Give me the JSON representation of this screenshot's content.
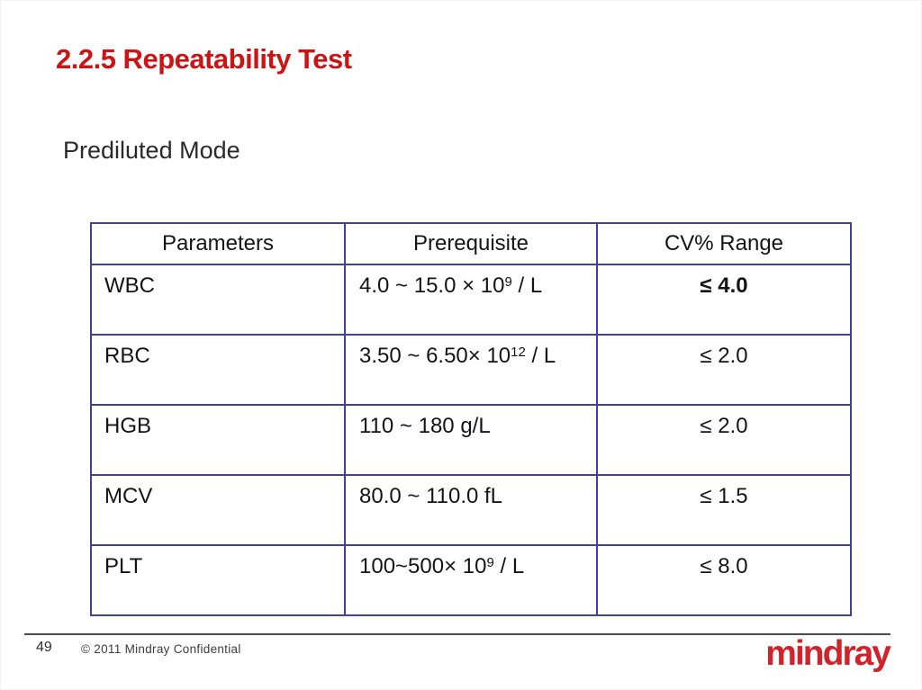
{
  "slide": {
    "title": "2.2.5 Repeatability Test",
    "subtitle": "Prediluted Mode"
  },
  "table": {
    "headers": [
      "Parameters",
      "Prerequisite",
      "CV% Range"
    ],
    "rows": [
      {
        "parameter": "WBC",
        "prereq": "4.0 ~ 15.0 × 10",
        "sup": "9",
        "tail": " / L",
        "cv": "≤ 4.0",
        "cv_bold": true
      },
      {
        "parameter": "RBC",
        "prereq": "3.50 ~ 6.50× 10",
        "sup": "12",
        "tail": " / L",
        "cv": "≤ 2.0",
        "cv_bold": false
      },
      {
        "parameter": "HGB",
        "prereq": "110 ~ 180 g/L",
        "sup": "",
        "tail": "",
        "cv": "≤ 2.0",
        "cv_bold": false
      },
      {
        "parameter": "MCV",
        "prereq": "80.0 ~ 110.0 fL",
        "sup": "",
        "tail": "",
        "cv": "≤ 1.5",
        "cv_bold": false
      },
      {
        "parameter": "PLT",
        "prereq": "100~500× 10",
        "sup": "9",
        "tail": " / L",
        "cv": "≤ 8.0",
        "cv_bold": false
      }
    ]
  },
  "footer": {
    "page_number": "49",
    "copyright": "© 2011 Mindray Confidential",
    "logo_text": "mindray"
  },
  "colors": {
    "title_red": "#cc1414",
    "logo_red": "#d2232a",
    "table_border": "#3f3f9e",
    "footer_line": "#4b4b4b"
  }
}
